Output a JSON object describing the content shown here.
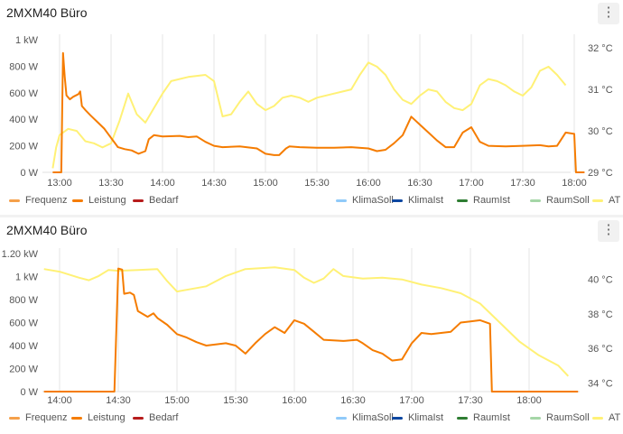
{
  "charts": [
    {
      "title": "2MXM40 Büro",
      "menu_icon": "⋮",
      "chart_data": {
        "type": "line",
        "x_ticks": [
          "13:00",
          "13:30",
          "14:00",
          "14:30",
          "15:00",
          "15:30",
          "16:00",
          "16:30",
          "17:00",
          "17:30",
          "18:00"
        ],
        "y_left_ticks": [
          "0 W",
          "200 W",
          "400 W",
          "600 W",
          "800 W",
          "1 kW"
        ],
        "y_right_ticks": [
          "29 °C",
          "30 °C",
          "31 °C",
          "32 °C"
        ],
        "y_left_range": [
          0,
          1000
        ],
        "y_right_range": [
          29,
          32.2
        ],
        "series": [
          {
            "name": "Leistung",
            "axis": "left",
            "color": "#f57c00",
            "points": [
              [
                "12:56",
                0
              ],
              [
                "13:01",
                0
              ],
              [
                "13:02",
                900
              ],
              [
                "13:03",
                720
              ],
              [
                "13:04",
                580
              ],
              [
                "13:06",
                550
              ],
              [
                "13:08",
                570
              ],
              [
                "13:11",
                590
              ],
              [
                "13:12",
                610
              ],
              [
                "13:13",
                500
              ],
              [
                "13:15",
                470
              ],
              [
                "13:18",
                430
              ],
              [
                "13:22",
                380
              ],
              [
                "13:26",
                330
              ],
              [
                "13:30",
                260
              ],
              [
                "13:34",
                190
              ],
              [
                "13:38",
                175
              ],
              [
                "13:42",
                165
              ],
              [
                "13:46",
                140
              ],
              [
                "13:50",
                160
              ],
              [
                "13:52",
                250
              ],
              [
                "13:55",
                280
              ],
              [
                "14:00",
                270
              ],
              [
                "14:10",
                275
              ],
              [
                "14:15",
                265
              ],
              [
                "14:20",
                270
              ],
              [
                "14:25",
                230
              ],
              [
                "14:30",
                200
              ],
              [
                "14:35",
                190
              ],
              [
                "14:45",
                195
              ],
              [
                "14:55",
                180
              ],
              [
                "15:00",
                140
              ],
              [
                "15:05",
                130
              ],
              [
                "15:08",
                130
              ],
              [
                "15:12",
                180
              ],
              [
                "15:14",
                195
              ],
              [
                "15:20",
                190
              ],
              [
                "15:30",
                185
              ],
              [
                "15:40",
                185
              ],
              [
                "15:50",
                190
              ],
              [
                "16:00",
                180
              ],
              [
                "16:05",
                160
              ],
              [
                "16:10",
                170
              ],
              [
                "16:15",
                220
              ],
              [
                "16:20",
                280
              ],
              [
                "16:25",
                420
              ],
              [
                "16:30",
                360
              ],
              [
                "16:35",
                300
              ],
              [
                "16:40",
                240
              ],
              [
                "16:45",
                190
              ],
              [
                "16:50",
                190
              ],
              [
                "16:55",
                300
              ],
              [
                "17:00",
                340
              ],
              [
                "17:05",
                230
              ],
              [
                "17:10",
                200
              ],
              [
                "17:20",
                195
              ],
              [
                "17:30",
                200
              ],
              [
                "17:40",
                205
              ],
              [
                "17:45",
                195
              ],
              [
                "17:50",
                200
              ],
              [
                "17:55",
                300
              ],
              [
                "18:00",
                290
              ],
              [
                "18:01",
                0
              ],
              [
                "18:06",
                0
              ]
            ]
          },
          {
            "name": "AT",
            "axis": "right",
            "color": "#fff176",
            "points": [
              [
                "12:56",
                29.1
              ],
              [
                "12:58",
                29.6
              ],
              [
                "13:00",
                29.9
              ],
              [
                "13:05",
                30.05
              ],
              [
                "13:10",
                30.0
              ],
              [
                "13:15",
                29.75
              ],
              [
                "13:20",
                29.7
              ],
              [
                "13:25",
                29.6
              ],
              [
                "13:30",
                29.7
              ],
              [
                "13:35",
                30.25
              ],
              [
                "13:40",
                30.9
              ],
              [
                "13:45",
                30.4
              ],
              [
                "13:50",
                30.2
              ],
              [
                "13:55",
                30.55
              ],
              [
                "14:00",
                30.9
              ],
              [
                "14:05",
                31.2
              ],
              [
                "14:15",
                31.3
              ],
              [
                "14:25",
                31.35
              ],
              [
                "14:30",
                31.2
              ],
              [
                "14:35",
                30.35
              ],
              [
                "14:40",
                30.4
              ],
              [
                "14:45",
                30.7
              ],
              [
                "14:50",
                30.95
              ],
              [
                "14:55",
                30.65
              ],
              [
                "15:00",
                30.5
              ],
              [
                "15:05",
                30.6
              ],
              [
                "15:10",
                30.8
              ],
              [
                "15:15",
                30.85
              ],
              [
                "15:20",
                30.8
              ],
              [
                "15:25",
                30.7
              ],
              [
                "15:30",
                30.8
              ],
              [
                "15:40",
                30.9
              ],
              [
                "15:50",
                31.0
              ],
              [
                "15:55",
                31.35
              ],
              [
                "16:00",
                31.65
              ],
              [
                "16:05",
                31.55
              ],
              [
                "16:10",
                31.35
              ],
              [
                "16:15",
                31.0
              ],
              [
                "16:20",
                30.75
              ],
              [
                "16:25",
                30.65
              ],
              [
                "16:30",
                30.85
              ],
              [
                "16:35",
                31.0
              ],
              [
                "16:40",
                30.95
              ],
              [
                "16:45",
                30.7
              ],
              [
                "16:50",
                30.55
              ],
              [
                "16:55",
                30.5
              ],
              [
                "17:00",
                30.65
              ],
              [
                "17:05",
                31.1
              ],
              [
                "17:10",
                31.25
              ],
              [
                "17:15",
                31.2
              ],
              [
                "17:20",
                31.1
              ],
              [
                "17:25",
                30.95
              ],
              [
                "17:30",
                30.85
              ],
              [
                "17:35",
                31.05
              ],
              [
                "17:40",
                31.45
              ],
              [
                "17:45",
                31.55
              ],
              [
                "17:50",
                31.35
              ],
              [
                "17:55",
                31.1
              ]
            ]
          }
        ]
      },
      "legend": [
        {
          "name": "Frequenz",
          "color": "#f5a04a",
          "hidden": false
        },
        {
          "name": "Leistung",
          "color": "#f57c00",
          "hidden": false
        },
        {
          "name": "Bedarf",
          "color": "#b71c1c",
          "hidden": false
        },
        {
          "name": "KlimaSoll",
          "color": "#90caf9",
          "hidden": false
        },
        {
          "name": "KlimaIst",
          "color": "#0d47a1",
          "hidden": false
        },
        {
          "name": "RaumIst",
          "color": "#2e7d32",
          "hidden": false
        },
        {
          "name": "RaumSoll",
          "color": "#a5d6a7",
          "hidden": false
        },
        {
          "name": "AT",
          "color": "#fff176",
          "hidden": false
        }
      ]
    },
    {
      "title": "2MXM40 Büro",
      "menu_icon": "⋮",
      "chart_data": {
        "type": "line",
        "x_ticks": [
          "14:00",
          "14:30",
          "15:00",
          "15:30",
          "16:00",
          "16:30",
          "17:00",
          "17:30",
          "18:00"
        ],
        "y_left_ticks": [
          "0 W",
          "200 W",
          "400 W",
          "600 W",
          "800 W",
          "1 kW",
          "1.20 kW"
        ],
        "y_right_ticks": [
          "34 °C",
          "36 °C",
          "38 °C",
          "40 °C"
        ],
        "y_left_range": [
          0,
          1200
        ],
        "y_right_range": [
          33.5,
          41.5
        ],
        "series": [
          {
            "name": "Leistung",
            "axis": "left",
            "color": "#f57c00",
            "points": [
              [
                "13:52",
                0
              ],
              [
                "14:28",
                0
              ],
              [
                "14:30",
                1070
              ],
              [
                "14:32",
                1060
              ],
              [
                "14:33",
                850
              ],
              [
                "14:36",
                860
              ],
              [
                "14:38",
                840
              ],
              [
                "14:40",
                700
              ],
              [
                "14:45",
                650
              ],
              [
                "14:48",
                680
              ],
              [
                "14:50",
                640
              ],
              [
                "14:55",
                580
              ],
              [
                "15:00",
                500
              ],
              [
                "15:05",
                470
              ],
              [
                "15:10",
                430
              ],
              [
                "15:15",
                400
              ],
              [
                "15:25",
                420
              ],
              [
                "15:30",
                400
              ],
              [
                "15:35",
                330
              ],
              [
                "15:40",
                420
              ],
              [
                "15:45",
                500
              ],
              [
                "15:50",
                560
              ],
              [
                "15:55",
                510
              ],
              [
                "16:00",
                620
              ],
              [
                "16:05",
                590
              ],
              [
                "16:10",
                520
              ],
              [
                "16:15",
                450
              ],
              [
                "16:25",
                440
              ],
              [
                "16:32",
                450
              ],
              [
                "16:35",
                420
              ],
              [
                "16:40",
                360
              ],
              [
                "16:45",
                330
              ],
              [
                "16:50",
                270
              ],
              [
                "16:55",
                280
              ],
              [
                "17:00",
                420
              ],
              [
                "17:05",
                510
              ],
              [
                "17:10",
                500
              ],
              [
                "17:15",
                510
              ],
              [
                "17:20",
                520
              ],
              [
                "17:25",
                600
              ],
              [
                "17:30",
                610
              ],
              [
                "17:35",
                620
              ],
              [
                "17:40",
                590
              ],
              [
                "17:41",
                0
              ],
              [
                "18:25",
                0
              ]
            ]
          },
          {
            "name": "AT",
            "axis": "right",
            "color": "#fff176",
            "points": [
              [
                "13:52",
                40.6
              ],
              [
                "14:00",
                40.45
              ],
              [
                "14:10",
                40.1
              ],
              [
                "14:15",
                39.95
              ],
              [
                "14:20",
                40.2
              ],
              [
                "14:25",
                40.55
              ],
              [
                "14:30",
                40.5
              ],
              [
                "14:40",
                40.55
              ],
              [
                "14:50",
                40.6
              ],
              [
                "14:55",
                39.9
              ],
              [
                "15:00",
                39.3
              ],
              [
                "15:05",
                39.4
              ],
              [
                "15:15",
                39.6
              ],
              [
                "15:25",
                40.2
              ],
              [
                "15:35",
                40.6
              ],
              [
                "15:50",
                40.7
              ],
              [
                "16:00",
                40.55
              ],
              [
                "16:05",
                40.1
              ],
              [
                "16:10",
                39.8
              ],
              [
                "16:15",
                40.05
              ],
              [
                "16:20",
                40.6
              ],
              [
                "16:25",
                40.2
              ],
              [
                "16:35",
                40.05
              ],
              [
                "16:45",
                40.1
              ],
              [
                "16:55",
                40.0
              ],
              [
                "17:05",
                39.7
              ],
              [
                "17:15",
                39.5
              ],
              [
                "17:25",
                39.2
              ],
              [
                "17:35",
                38.6
              ],
              [
                "17:45",
                37.5
              ],
              [
                "17:55",
                36.4
              ],
              [
                "18:05",
                35.6
              ],
              [
                "18:15",
                35.0
              ],
              [
                "18:20",
                34.4
              ]
            ]
          }
        ]
      },
      "legend": [
        {
          "name": "Frequenz",
          "color": "#f5a04a",
          "hidden": false
        },
        {
          "name": "Leistung",
          "color": "#f57c00",
          "hidden": false
        },
        {
          "name": "Bedarf",
          "color": "#b71c1c",
          "hidden": false
        },
        {
          "name": "KlimaSoll",
          "color": "#90caf9",
          "hidden": false
        },
        {
          "name": "KlimaIst",
          "color": "#0d47a1",
          "hidden": false
        },
        {
          "name": "RaumIst",
          "color": "#2e7d32",
          "hidden": false
        },
        {
          "name": "RaumSoll",
          "color": "#a5d6a7",
          "hidden": false
        },
        {
          "name": "AT",
          "color": "#fff176",
          "hidden": false
        }
      ]
    }
  ]
}
